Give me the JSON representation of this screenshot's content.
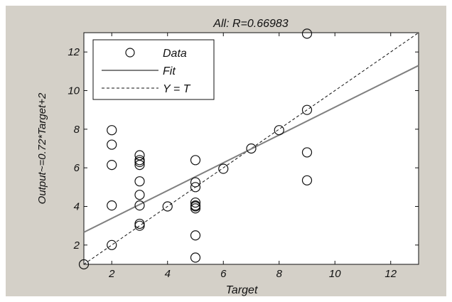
{
  "chart_data": {
    "type": "scatter",
    "title": "All: R=0.66983",
    "xlabel": "Target",
    "ylabel": "Output~=0.72*Target+2",
    "xlim": [
      1,
      13
    ],
    "ylim": [
      1,
      13
    ],
    "xticks": [
      2,
      4,
      6,
      8,
      10,
      12
    ],
    "yticks": [
      2,
      4,
      6,
      8,
      10,
      12
    ],
    "grid": false,
    "legend": {
      "placement": "top-left",
      "entries": [
        "Data",
        "Fit",
        "Y = T"
      ]
    },
    "series": [
      {
        "name": "Data",
        "marker": "open-circle",
        "points": [
          [
            1,
            1
          ],
          [
            2,
            7.95
          ],
          [
            2,
            7.2
          ],
          [
            2,
            6.15
          ],
          [
            2,
            4.05
          ],
          [
            2,
            2
          ],
          [
            3,
            6.65
          ],
          [
            3,
            6.4
          ],
          [
            3,
            6.3
          ],
          [
            3,
            6.15
          ],
          [
            3,
            5.3
          ],
          [
            3,
            4.6
          ],
          [
            3,
            4.05
          ],
          [
            3,
            3.1
          ],
          [
            3,
            3.0
          ],
          [
            4,
            4.0
          ],
          [
            5,
            6.4
          ],
          [
            5,
            5.25
          ],
          [
            5,
            5.0
          ],
          [
            5,
            4.2
          ],
          [
            5,
            4.05
          ],
          [
            5,
            4.0
          ],
          [
            5,
            3.9
          ],
          [
            5,
            2.5
          ],
          [
            5,
            1.35
          ],
          [
            6,
            5.95
          ],
          [
            7,
            7.0
          ],
          [
            8,
            7.95
          ],
          [
            9,
            12.95
          ],
          [
            9,
            9.0
          ],
          [
            9,
            6.8
          ],
          [
            9,
            5.35
          ]
        ]
      },
      {
        "name": "Fit",
        "style": "solid",
        "slope": 0.72,
        "intercept": 1.94
      },
      {
        "name": "Y = T",
        "style": "dashed",
        "slope": 1,
        "intercept": 0
      }
    ]
  },
  "colors": {
    "frame_background": "#d4d0c8",
    "axes_background": "#ffffff",
    "fit_line": "#808080",
    "ink": "#111111"
  }
}
